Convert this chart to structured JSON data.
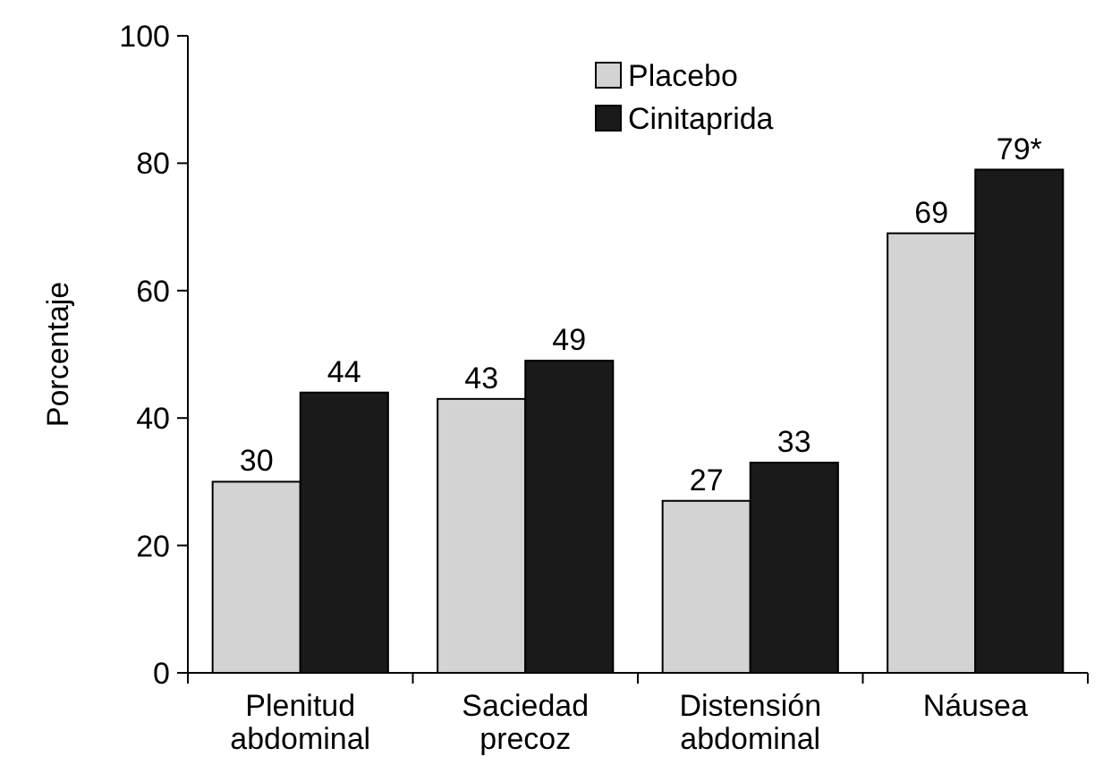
{
  "chart_data": {
    "type": "bar",
    "ylabel": "Porcentaje",
    "categories": [
      "Plenitud abdominal",
      "Saciedad precoz",
      "Distensión abdominal",
      "Náusea"
    ],
    "series": [
      {
        "name": "Placebo",
        "color": "#d3d3d3",
        "values": [
          30,
          43,
          27,
          69
        ],
        "value_labels": [
          "30",
          "43",
          "27",
          "69"
        ]
      },
      {
        "name": "Cinitaprida",
        "color": "#1a1a1a",
        "values": [
          44,
          49,
          33,
          79
        ],
        "value_labels": [
          "44",
          "49",
          "33",
          "79*"
        ]
      }
    ],
    "ylim": [
      0,
      100
    ],
    "yticks": [
      0,
      20,
      40,
      60,
      80,
      100
    ],
    "grid": false,
    "legend": "top"
  }
}
